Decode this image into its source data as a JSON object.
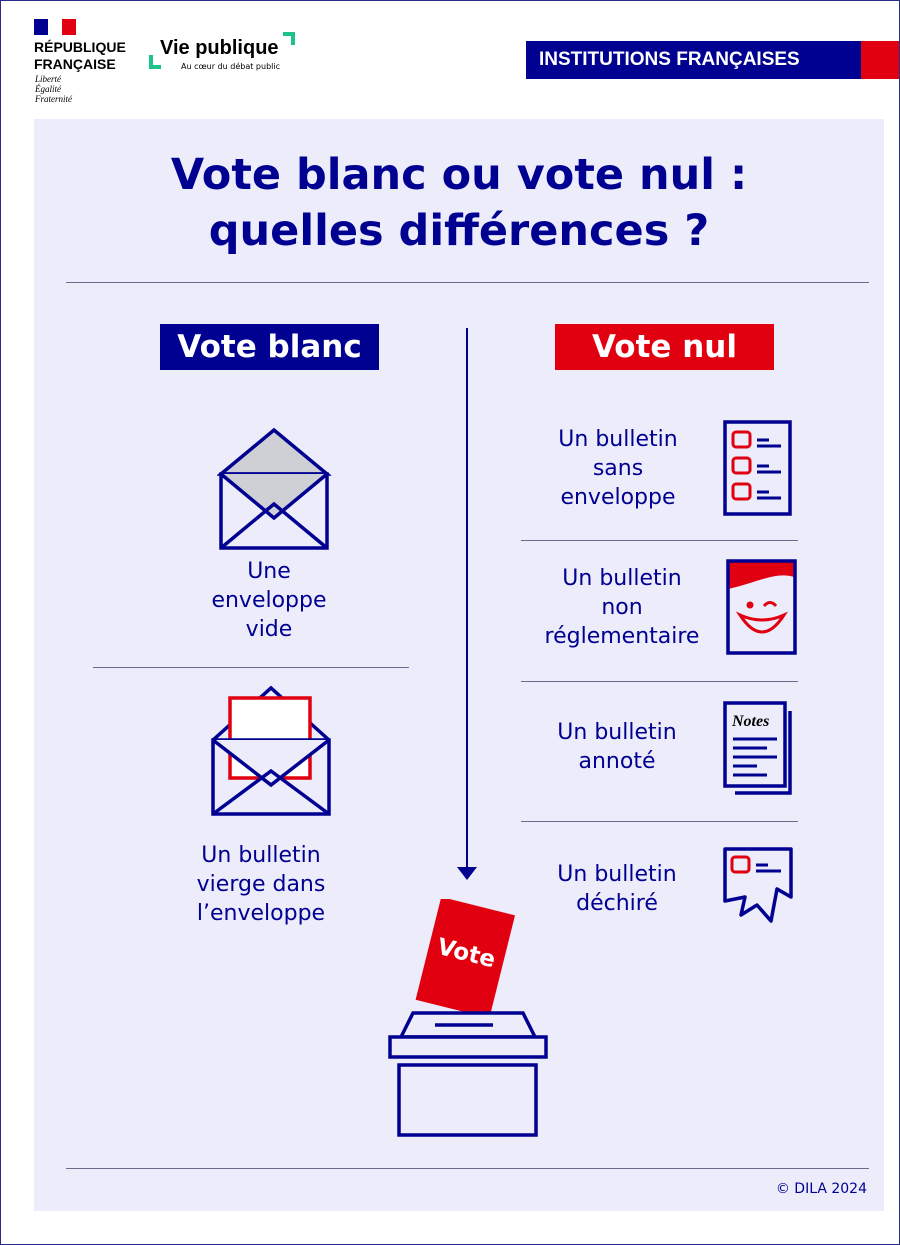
{
  "header": {
    "republique_name": [
      "RÉPUBLIQUE",
      "FRANÇAISE"
    ],
    "republique_motto": [
      "Liberté",
      "Égalité",
      "Fraternité"
    ],
    "vie_publique_title": "Vie publique",
    "vie_publique_tagline": "Au cœur du débat public",
    "category_badge": "INSTITUTIONS FRANÇAISES"
  },
  "title": [
    "Vote blanc ou vote nul :",
    "quelles différences ?"
  ],
  "vote_blanc": {
    "label": "Vote blanc",
    "items": [
      {
        "icon": "empty-envelope-icon",
        "caption": [
          "Une",
          "enveloppe",
          "vide"
        ]
      },
      {
        "icon": "envelope-with-ballot-icon",
        "caption": [
          "Un bulletin",
          "vierge dans",
          "l’enveloppe"
        ]
      }
    ]
  },
  "vote_nul": {
    "label": "Vote nul",
    "items": [
      {
        "icon": "ballot-checklist-icon",
        "caption": [
          "Un bulletin",
          "sans",
          "enveloppe"
        ]
      },
      {
        "icon": "smiley-ballot-icon",
        "caption": [
          "Un bulletin",
          "non",
          "réglementaire"
        ]
      },
      {
        "icon": "notes-ballot-icon",
        "caption": [
          "Un bulletin",
          "annoté"
        ],
        "icon_text": "Notes"
      },
      {
        "icon": "torn-ballot-icon",
        "caption": [
          "Un bulletin",
          "déchiré"
        ]
      }
    ]
  },
  "ballot_box": {
    "ballot_text": "Vote"
  },
  "footer": {
    "copyright": "© DILA 2024"
  },
  "colors": {
    "navy": "#000091",
    "red": "#e1000f",
    "background": "#ececfb",
    "green": "#1dc48a"
  }
}
